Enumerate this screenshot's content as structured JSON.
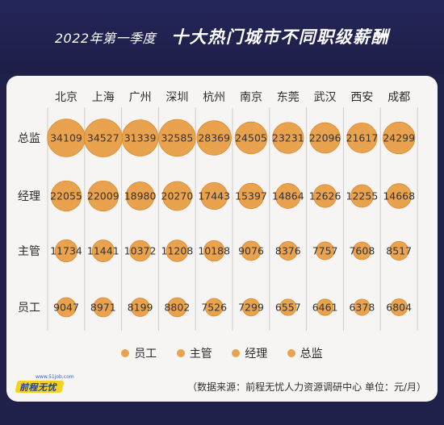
{
  "title": {
    "year": "2022年第一季度",
    "main": "十大热门城市不同职级薪酬"
  },
  "chart_data": {
    "type": "scatter",
    "encoding": "bubble",
    "categories": [
      "北京",
      "上海",
      "广州",
      "深圳",
      "杭州",
      "南京",
      "东莞",
      "武汉",
      "西安",
      "成都"
    ],
    "series": [
      {
        "name": "总监",
        "values": [
          34109,
          34527,
          31339,
          32585,
          28369,
          24505,
          23231,
          22096,
          21617,
          24299
        ]
      },
      {
        "name": "经理",
        "values": [
          22055,
          22009,
          18980,
          20270,
          17443,
          15397,
          14864,
          12626,
          12255,
          14668
        ]
      },
      {
        "name": "主管",
        "values": [
          11734,
          11441,
          10372,
          11208,
          10188,
          9076,
          8376,
          7757,
          7608,
          8517
        ]
      },
      {
        "name": "员工",
        "values": [
          9047,
          8971,
          8199,
          8802,
          7526,
          7299,
          6557,
          6461,
          6378,
          6804
        ]
      }
    ],
    "legend": [
      "员工",
      "主管",
      "经理",
      "总监"
    ],
    "legend_position": "bottom",
    "bubble_color": "#e9a24e",
    "bubble_stroke": "#d98a2f",
    "grid": true
  },
  "footer": {
    "logo_url": "www.51job.com",
    "logo_text": "前程无忧",
    "source": "（数据来源：前程无忧人力资源调研中心  单位：元/月）"
  }
}
